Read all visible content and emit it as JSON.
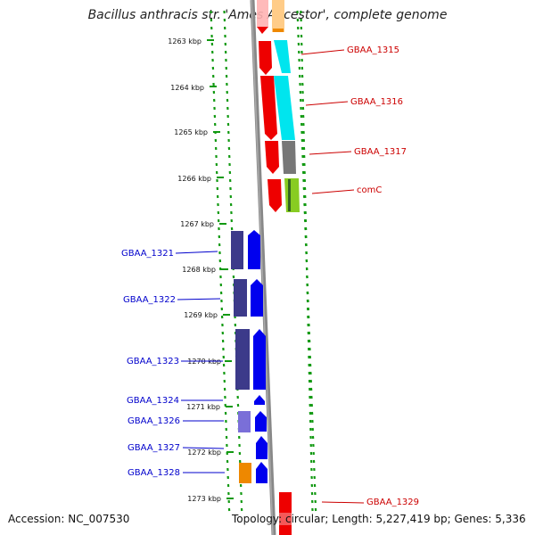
{
  "title": "Bacillus anthracis str. 'Ames Ancestor', complete genome",
  "accession": "Accession: NC_007530",
  "summary": "Topology: circular; Length: 5,227,419 bp; Genes: 5,336",
  "ruler": [
    "1263 kbp",
    "1264 kbp",
    "1265 kbp",
    "1266 kbp",
    "1267 kbp",
    "1268 kbp",
    "1269 kbp",
    "1270 kbp",
    "1271 kbp",
    "1272 kbp",
    "1273 kbp"
  ],
  "forward_genes": [
    "GBAA_1315",
    "GBAA_1316",
    "GBAA_1317",
    "comC",
    "GBAA_1329"
  ],
  "reverse_genes": [
    "GBAA_1321",
    "GBAA_1322",
    "GBAA_1323",
    "GBAA_1324",
    "GBAA_1326",
    "GBAA_1327",
    "GBAA_1328"
  ],
  "colors": {
    "forward_label": "#cc0000",
    "reverse_label": "#0000cc",
    "feature_red": "#ee0000",
    "feature_cyan": "#00e5ee",
    "feature_gray": "#777777",
    "feature_green": "#88cc22",
    "feature_blue": "#0000ee",
    "feature_navy": "#3c3a8a",
    "feature_orange": "#ee8800",
    "feature_lavender": "#7a6fd8",
    "ruler_green": "#119911",
    "backbone": "#888888"
  }
}
